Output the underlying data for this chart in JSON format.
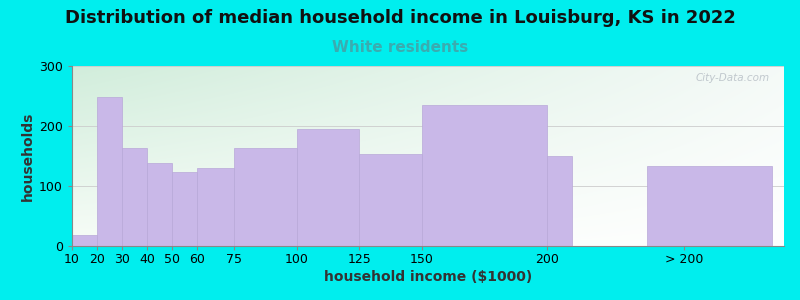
{
  "title": "Distribution of median household income in Louisburg, KS in 2022",
  "subtitle": "White residents",
  "xlabel": "household income ($1000)",
  "ylabel": "households",
  "bar_color": "#c9b8e8",
  "bar_edge_color": "#b8a8d8",
  "background_color": "#00eeee",
  "plot_bg_top_left": "#d8ede0",
  "plot_bg_bottom_right": "#f8f8f8",
  "ylim": [
    0,
    300
  ],
  "yticks": [
    0,
    100,
    200,
    300
  ],
  "title_fontsize": 13,
  "subtitle_fontsize": 11,
  "subtitle_color": "#3aacb0",
  "axis_label_fontsize": 10,
  "tick_label_fontsize": 9,
  "watermark": "City-Data.com",
  "bar_lefts": [
    10,
    20,
    30,
    40,
    50,
    60,
    75,
    100,
    125,
    150,
    200,
    240
  ],
  "bar_widths": [
    10,
    10,
    10,
    10,
    10,
    15,
    25,
    25,
    25,
    50,
    10,
    50
  ],
  "bar_heights": [
    18,
    248,
    163,
    138,
    123,
    130,
    163,
    195,
    153,
    235,
    150,
    133
  ],
  "tick_positions": [
    10,
    20,
    30,
    40,
    50,
    60,
    75,
    100,
    125,
    150,
    200,
    255
  ],
  "tick_labels": [
    "10",
    "20",
    "30",
    "40",
    "50",
    "60",
    "75",
    "100",
    "125",
    "150",
    "200",
    "> 200"
  ],
  "xlim": [
    10,
    295
  ]
}
